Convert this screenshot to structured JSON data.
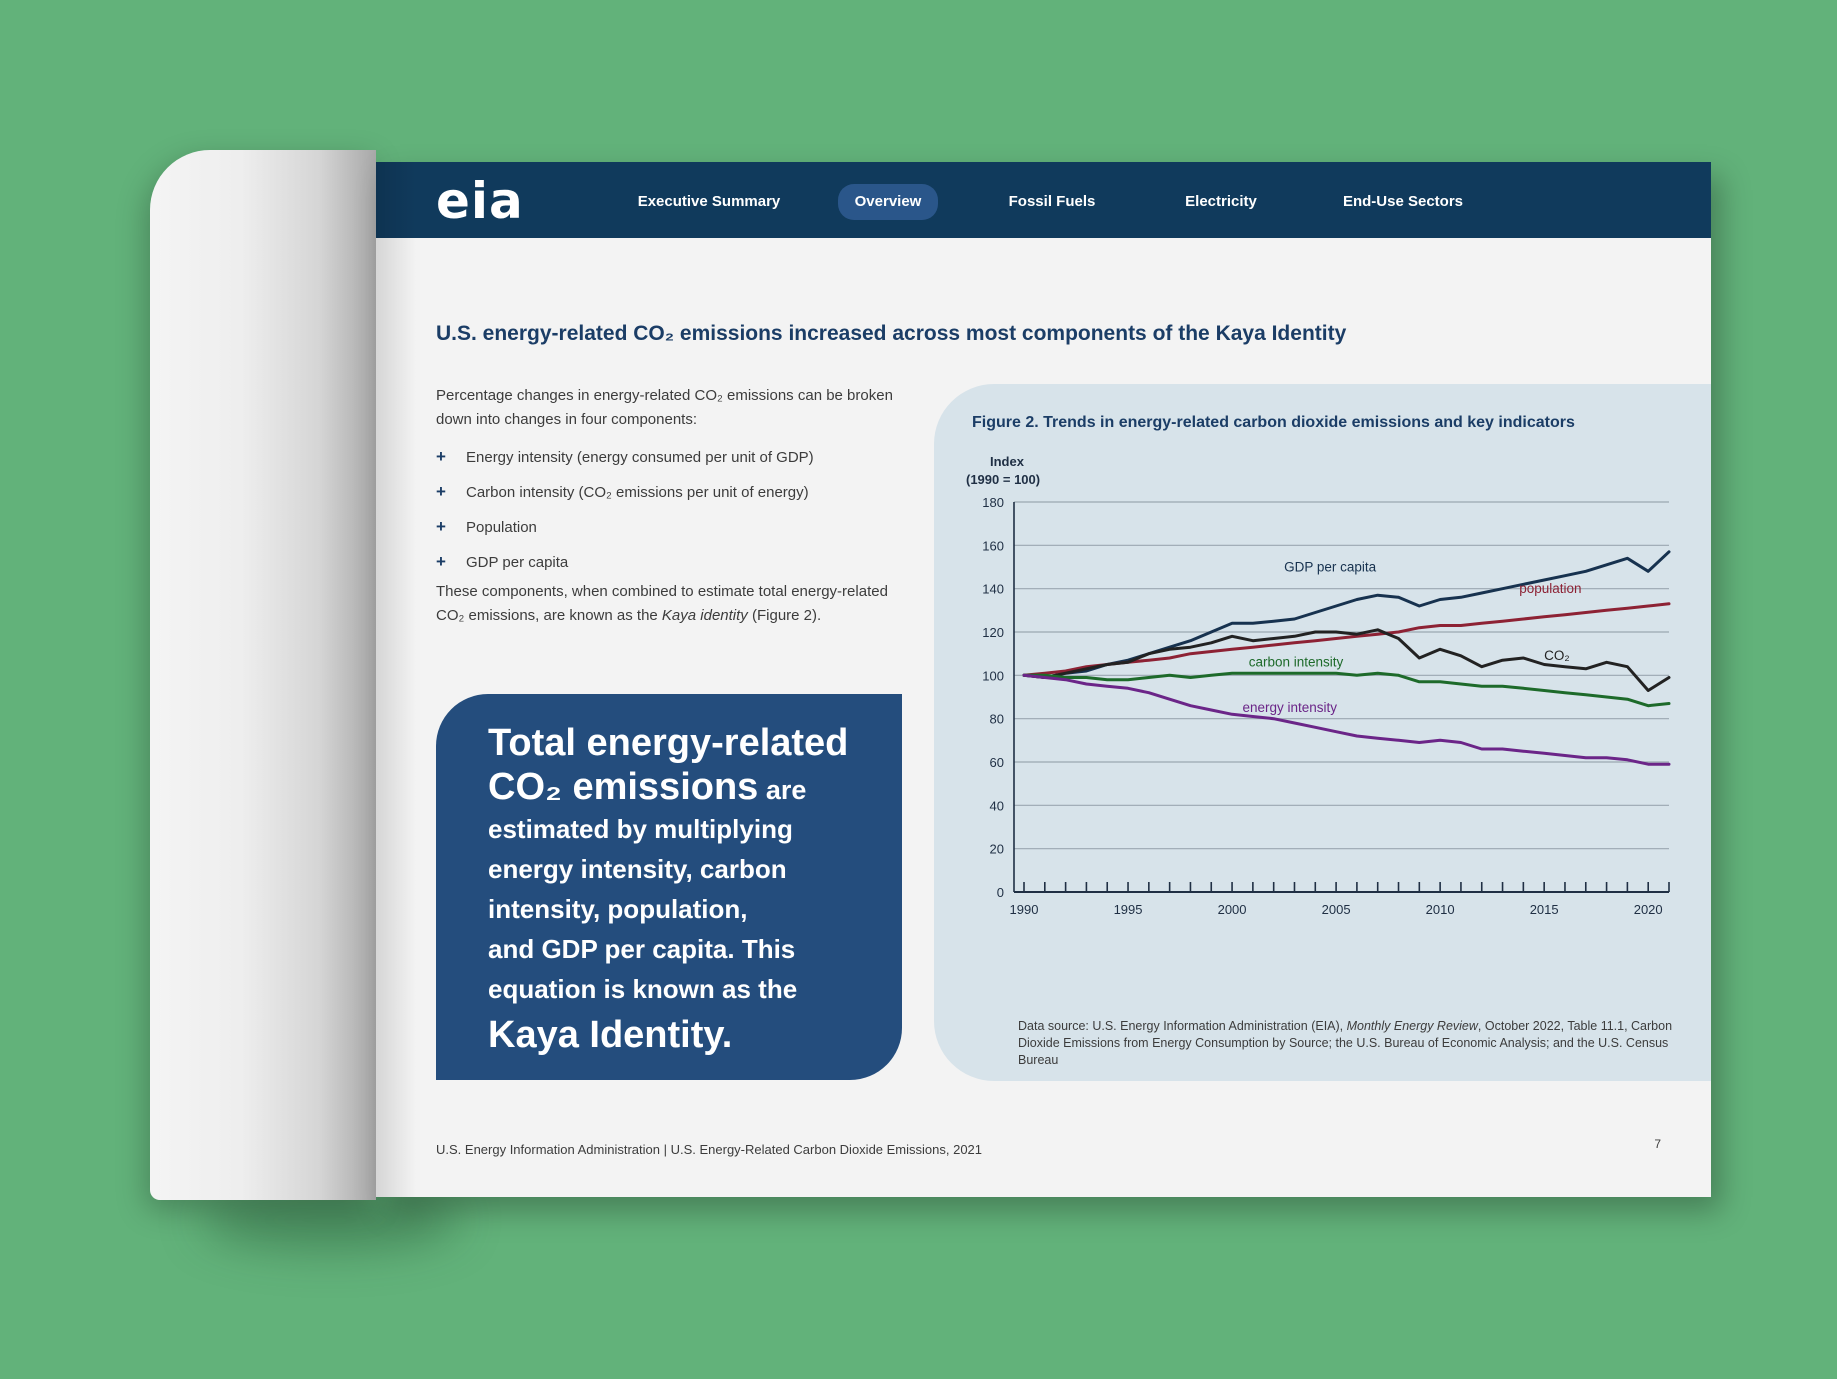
{
  "header": {
    "logo": "eia",
    "nav": [
      {
        "label": "Executive Summary",
        "active": false
      },
      {
        "label": "Overview",
        "active": true
      },
      {
        "label": "Fossil Fuels",
        "active": false
      },
      {
        "label": "Electricity",
        "active": false
      },
      {
        "label": "End-Use Sectors",
        "active": false
      }
    ]
  },
  "headline": "U.S. energy-related CO₂ emissions increased across most components of the Kaya Identity",
  "intro": "Percentage changes in energy-related CO₂ emissions can be broken down into changes in four components:",
  "bullets": [
    "Energy intensity (energy consumed per unit of GDP)",
    "Carbon intensity (CO₂ emissions per unit of energy)",
    "Population",
    "GDP per capita"
  ],
  "bullet_marker": "+",
  "after_text": {
    "before": "These components, when combined to estimate total energy-related CO₂ emissions, are known as the ",
    "emph": "Kaya identity",
    "after": " (Figure 2)."
  },
  "callout": {
    "line1": "Total energy-related",
    "line2_big": "CO₂ emissions",
    "line2_small": " are",
    "lines": [
      "estimated by multiplying",
      "energy intensity, carbon",
      "intensity, population,",
      "and GDP per capita. This",
      "equation is known as the"
    ],
    "last": "Kaya Identity."
  },
  "figure": {
    "title": "Figure 2. Trends in energy-related carbon dioxide emissions and key indicators",
    "source": {
      "prefix": "Data source: U.S. Energy Information Administration (EIA), ",
      "emph": "Monthly Energy Review",
      "suffix": ", October 2022, Table 11.1, Carbon Dioxide Emissions from Energy Consumption by Source; the U.S. Bureau of Economic Analysis; and the U.S. Census Bureau"
    }
  },
  "chart_data": {
    "type": "line",
    "title": "Figure 2. Trends in energy-related carbon dioxide emissions and key indicators",
    "ylabel": "Index (1990 = 100)",
    "ylabel_lines": [
      "Index",
      "(1990 = 100)"
    ],
    "xlabel": "",
    "xlim": [
      1990,
      2021
    ],
    "ylim": [
      0,
      180
    ],
    "y_ticks": [
      0,
      20,
      40,
      60,
      80,
      100,
      120,
      140,
      160,
      180
    ],
    "x_ticks": [
      1990,
      1995,
      2000,
      2005,
      2010,
      2015,
      2020
    ],
    "grid": true,
    "x": [
      1990,
      1991,
      1992,
      1993,
      1994,
      1995,
      1996,
      1997,
      1998,
      1999,
      2000,
      2001,
      2002,
      2003,
      2004,
      2005,
      2006,
      2007,
      2008,
      2009,
      2010,
      2011,
      2012,
      2013,
      2014,
      2015,
      2016,
      2017,
      2018,
      2019,
      2020,
      2021
    ],
    "series": [
      {
        "name": "GDP per capita",
        "color": "#17324f",
        "values": [
          100,
          99,
          101,
          102,
          105,
          107,
          110,
          113,
          116,
          120,
          124,
          124,
          125,
          126,
          129,
          132,
          135,
          137,
          136,
          132,
          135,
          136,
          138,
          140,
          142,
          144,
          146,
          148,
          151,
          154,
          148,
          157
        ]
      },
      {
        "name": "population",
        "color": "#8d2234",
        "values": [
          100,
          101,
          102,
          104,
          105,
          106,
          107,
          108,
          110,
          111,
          112,
          113,
          114,
          115,
          116,
          117,
          118,
          119,
          120,
          122,
          123,
          123,
          124,
          125,
          126,
          127,
          128,
          129,
          130,
          131,
          132,
          133
        ]
      },
      {
        "name": "CO₂",
        "color": "#222222",
        "values": [
          100,
          99,
          101,
          103,
          105,
          106,
          110,
          112,
          113,
          115,
          118,
          116,
          117,
          118,
          120,
          120,
          119,
          121,
          117,
          108,
          112,
          109,
          104,
          107,
          108,
          105,
          104,
          103,
          106,
          104,
          93,
          99
        ]
      },
      {
        "name": "carbon intensity",
        "color": "#1d6a2a",
        "values": [
          100,
          100,
          99,
          99,
          98,
          98,
          99,
          100,
          99,
          100,
          101,
          101,
          101,
          101,
          101,
          101,
          100,
          101,
          100,
          97,
          97,
          96,
          95,
          95,
          94,
          93,
          92,
          91,
          90,
          89,
          86,
          87
        ]
      },
      {
        "name": "energy intensity",
        "color": "#6b2588",
        "values": [
          100,
          99,
          98,
          96,
          95,
          94,
          92,
          89,
          86,
          84,
          82,
          81,
          80,
          78,
          76,
          74,
          72,
          71,
          70,
          69,
          70,
          69,
          66,
          66,
          65,
          64,
          63,
          62,
          62,
          61,
          59,
          59
        ]
      }
    ]
  }
}
